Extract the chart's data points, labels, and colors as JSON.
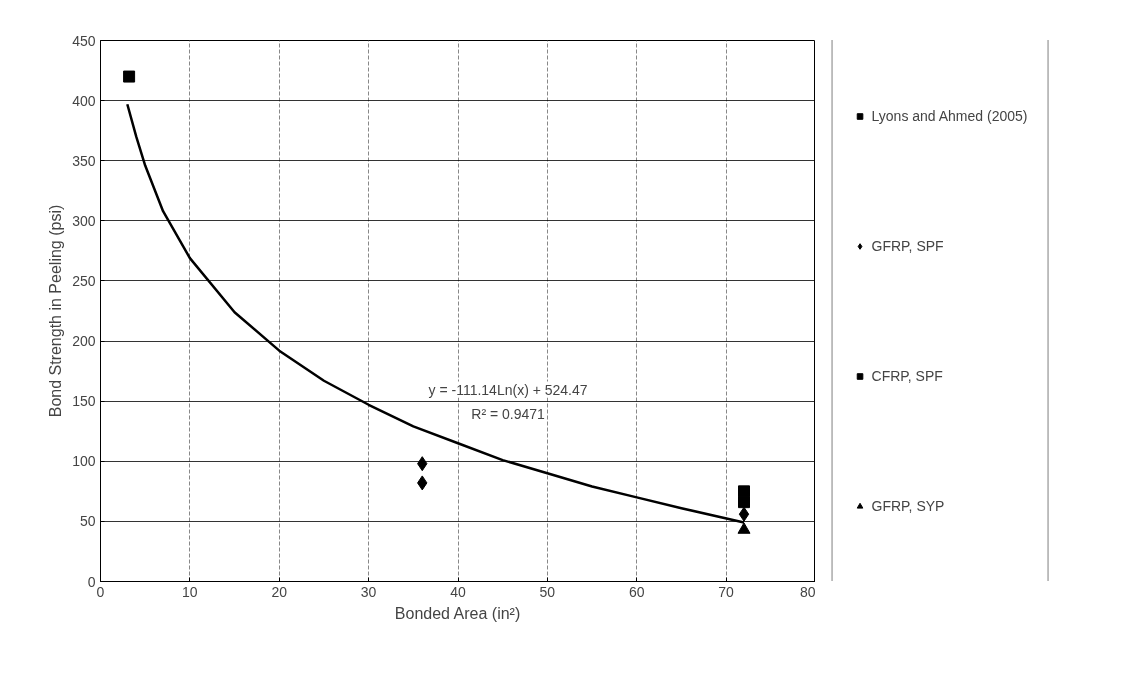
{
  "chart_data": {
    "type": "scatter",
    "xlabel": "Bonded Area (in²)",
    "ylabel": "Bond Strength in Peeling (psi)",
    "xlim": [
      0,
      80
    ],
    "xticks": [
      0,
      10,
      20,
      30,
      40,
      50,
      60,
      70,
      80
    ],
    "ylim": [
      0,
      450
    ],
    "yticks": [
      0,
      50,
      100,
      150,
      200,
      250,
      300,
      350,
      400,
      450
    ],
    "grid": true,
    "legend": "right",
    "series": [
      {
        "name": "Lyons and Ahmed (2005)",
        "color": "#000000",
        "marker": "square",
        "x": [
          3.2
        ],
        "values": [
          420
        ]
      },
      {
        "name": "GFRP, SPF",
        "color": "#000000",
        "marker": "diamond",
        "x": [
          36,
          36,
          72
        ],
        "values": [
          98,
          82,
          56
        ]
      },
      {
        "name": "CFRP, SPF",
        "color": "#000000",
        "marker": "square",
        "x": [
          72,
          72
        ],
        "values": [
          75,
          66
        ]
      },
      {
        "name": "GFRP, SYP",
        "color": "#000000",
        "marker": "triangle",
        "x": [
          72
        ],
        "values": [
          43
        ]
      },
      {
        "type": "line",
        "color": "#000000",
        "marker": "none",
        "x": [
          3,
          4,
          5,
          7,
          10,
          15,
          20,
          25,
          30,
          35,
          40,
          45,
          50,
          55,
          60,
          65,
          72
        ],
        "values": [
          397,
          370,
          346,
          308,
          269,
          224,
          192,
          167,
          147,
          129,
          115,
          101,
          90,
          79,
          70,
          61,
          49
        ]
      }
    ],
    "annotations": [
      "y = -111.14Ln(x) + 524.47",
      "R² = 0.9471"
    ]
  }
}
